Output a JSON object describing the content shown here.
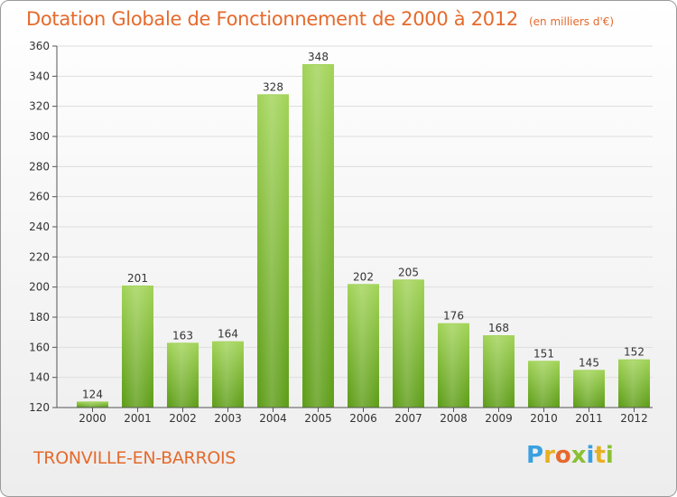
{
  "title": "Dotation Globale de Fonctionnement de 2000 à 2012",
  "unit": "(en milliers d'€)",
  "commune": "TRONVILLE-EN-BARROIS",
  "logo": {
    "text": "Proxiti",
    "letters": [
      "P",
      "r",
      "o",
      "x",
      "i",
      "t",
      "i"
    ],
    "colors": [
      "#3aa0e0",
      "#e8b020",
      "#e56a2c",
      "#8bc034",
      "#3aa0e0",
      "#e8b020",
      "#8bc034"
    ]
  },
  "colors": {
    "title": "#e56a2c",
    "bar_top": "#a3d45a",
    "bar_bottom": "#5f9e1a",
    "grid": "#dddddd",
    "axis": "#555555"
  },
  "chart_data": {
    "type": "bar",
    "title": "Dotation Globale de Fonctionnement de 2000 à 2012",
    "categories": [
      "2000",
      "2001",
      "2002",
      "2003",
      "2004",
      "2005",
      "2006",
      "2007",
      "2008",
      "2009",
      "2010",
      "2011",
      "2012"
    ],
    "values": [
      124,
      201,
      163,
      164,
      328,
      348,
      202,
      205,
      176,
      168,
      151,
      145,
      152
    ],
    "xlabel": "",
    "ylabel": "",
    "ylim": [
      120,
      360
    ],
    "yticks": [
      120,
      140,
      160,
      180,
      200,
      220,
      240,
      260,
      280,
      300,
      320,
      340,
      360
    ],
    "grid": true
  }
}
